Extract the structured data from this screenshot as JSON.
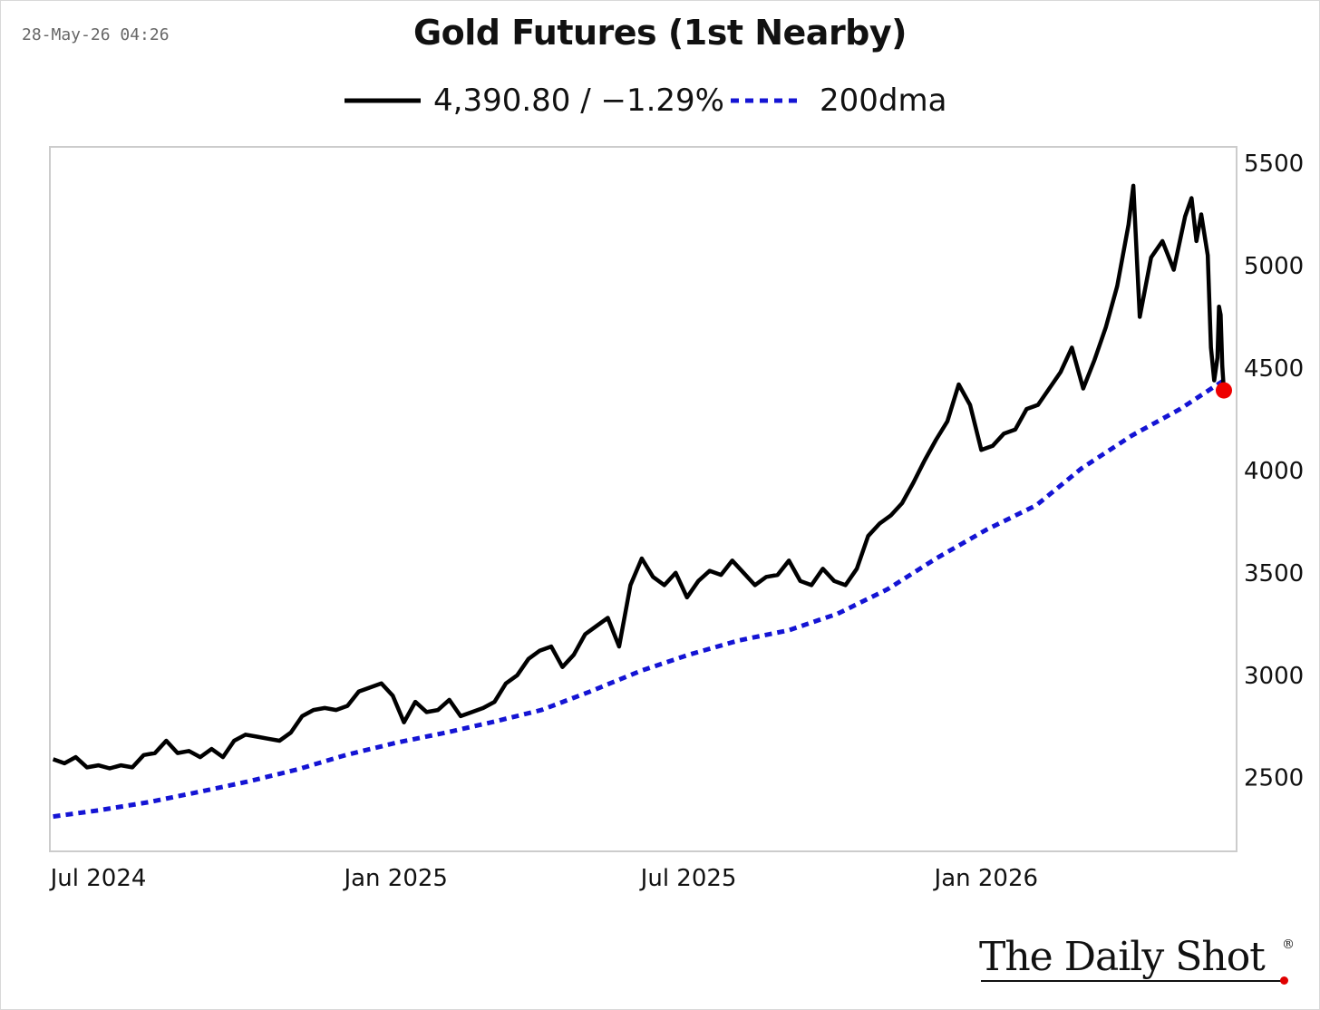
{
  "timestamp": "28-May-26 04:26",
  "brand": "The Daily Shot",
  "chart_data": {
    "type": "line",
    "title": "Gold Futures (1st Nearby)",
    "xlabel": "",
    "ylabel": "",
    "x_range": [
      "2024-06-01",
      "2026-05-28"
    ],
    "ylim": [
      2140,
      5580
    ],
    "x_ticks": [
      {
        "label": "Jul 2024",
        "date": "2024-07-01"
      },
      {
        "label": "Jan 2025",
        "date": "2025-01-01"
      },
      {
        "label": "Jul 2025",
        "date": "2025-07-01"
      },
      {
        "label": "Jan 2026",
        "date": "2026-01-01"
      }
    ],
    "y_ticks": [
      2500,
      3000,
      3500,
      4000,
      4500,
      5000,
      5500
    ],
    "y_axis_position": "right",
    "grid": false,
    "legend_position": "top-center",
    "series": [
      {
        "name": "4,390.80 / −1.29%",
        "color": "#000000",
        "style": "solid",
        "points": [
          [
            "2024-06-03",
            2590
          ],
          [
            "2024-06-10",
            2570
          ],
          [
            "2024-06-17",
            2600
          ],
          [
            "2024-06-24",
            2550
          ],
          [
            "2024-07-01",
            2560
          ],
          [
            "2024-07-08",
            2545
          ],
          [
            "2024-07-15",
            2560
          ],
          [
            "2024-07-22",
            2550
          ],
          [
            "2024-07-29",
            2610
          ],
          [
            "2024-08-05",
            2620
          ],
          [
            "2024-08-12",
            2680
          ],
          [
            "2024-08-19",
            2620
          ],
          [
            "2024-08-26",
            2630
          ],
          [
            "2024-09-02",
            2600
          ],
          [
            "2024-09-09",
            2640
          ],
          [
            "2024-09-16",
            2600
          ],
          [
            "2024-09-23",
            2680
          ],
          [
            "2024-09-30",
            2710
          ],
          [
            "2024-10-07",
            2700
          ],
          [
            "2024-10-14",
            2690
          ],
          [
            "2024-10-21",
            2680
          ],
          [
            "2024-10-28",
            2720
          ],
          [
            "2024-11-04",
            2800
          ],
          [
            "2024-11-11",
            2830
          ],
          [
            "2024-11-18",
            2840
          ],
          [
            "2024-11-25",
            2830
          ],
          [
            "2024-12-02",
            2850
          ],
          [
            "2024-12-09",
            2920
          ],
          [
            "2024-12-16",
            2940
          ],
          [
            "2024-12-23",
            2960
          ],
          [
            "2024-12-30",
            2900
          ],
          [
            "2025-01-06",
            2770
          ],
          [
            "2025-01-13",
            2870
          ],
          [
            "2025-01-20",
            2820
          ],
          [
            "2025-01-27",
            2830
          ],
          [
            "2025-02-03",
            2880
          ],
          [
            "2025-02-10",
            2800
          ],
          [
            "2025-02-17",
            2820
          ],
          [
            "2025-02-24",
            2840
          ],
          [
            "2025-03-03",
            2870
          ],
          [
            "2025-03-10",
            2960
          ],
          [
            "2025-03-17",
            3000
          ],
          [
            "2025-03-24",
            3080
          ],
          [
            "2025-03-31",
            3120
          ],
          [
            "2025-04-07",
            3140
          ],
          [
            "2025-04-14",
            3040
          ],
          [
            "2025-04-21",
            3100
          ],
          [
            "2025-04-28",
            3200
          ],
          [
            "2025-05-05",
            3240
          ],
          [
            "2025-05-12",
            3280
          ],
          [
            "2025-05-19",
            3140
          ],
          [
            "2025-05-26",
            3440
          ],
          [
            "2025-06-02",
            3570
          ],
          [
            "2025-06-09",
            3480
          ],
          [
            "2025-06-16",
            3440
          ],
          [
            "2025-06-23",
            3500
          ],
          [
            "2025-06-30",
            3380
          ],
          [
            "2025-07-07",
            3460
          ],
          [
            "2025-07-14",
            3510
          ],
          [
            "2025-07-21",
            3490
          ],
          [
            "2025-07-28",
            3560
          ],
          [
            "2025-08-04",
            3500
          ],
          [
            "2025-08-11",
            3440
          ],
          [
            "2025-08-18",
            3480
          ],
          [
            "2025-08-25",
            3490
          ],
          [
            "2025-09-01",
            3560
          ],
          [
            "2025-09-08",
            3460
          ],
          [
            "2025-09-15",
            3440
          ],
          [
            "2025-09-22",
            3520
          ],
          [
            "2025-09-29",
            3460
          ],
          [
            "2025-10-06",
            3440
          ],
          [
            "2025-10-13",
            3520
          ],
          [
            "2025-10-20",
            3680
          ],
          [
            "2025-10-27",
            3740
          ],
          [
            "2025-11-03",
            3780
          ],
          [
            "2025-11-10",
            3840
          ],
          [
            "2025-11-17",
            3940
          ],
          [
            "2025-11-24",
            4050
          ],
          [
            "2025-12-01",
            4150
          ],
          [
            "2025-12-08",
            4240
          ],
          [
            "2025-12-15",
            4420
          ],
          [
            "2025-12-22",
            4320
          ],
          [
            "2025-12-29",
            4100
          ],
          [
            "2026-01-05",
            4120
          ],
          [
            "2026-01-12",
            4180
          ],
          [
            "2026-01-19",
            4200
          ],
          [
            "2026-01-26",
            4300
          ],
          [
            "2026-02-02",
            4320
          ],
          [
            "2026-02-09",
            4400
          ],
          [
            "2026-02-16",
            4480
          ],
          [
            "2026-02-23",
            4600
          ],
          [
            "2026-03-02",
            4400
          ],
          [
            "2026-03-09",
            4540
          ],
          [
            "2026-03-16",
            4700
          ],
          [
            "2026-03-23",
            4900
          ],
          [
            "2026-03-30",
            5200
          ],
          [
            "2026-04-02",
            5390
          ],
          [
            "2026-04-06",
            4750
          ],
          [
            "2026-04-13",
            5040
          ],
          [
            "2026-04-20",
            5120
          ],
          [
            "2026-04-27",
            4980
          ],
          [
            "2026-05-04",
            5240
          ],
          [
            "2026-05-08",
            5330
          ],
          [
            "2026-05-11",
            5120
          ],
          [
            "2026-05-14",
            5250
          ],
          [
            "2026-05-18",
            5050
          ],
          [
            "2026-05-20",
            4600
          ],
          [
            "2026-05-22",
            4440
          ],
          [
            "2026-05-24",
            4550
          ],
          [
            "2026-05-25",
            4800
          ],
          [
            "2026-05-26",
            4760
          ],
          [
            "2026-05-27",
            4510
          ],
          [
            "2026-05-28",
            4390.8
          ]
        ]
      },
      {
        "name": "200dma",
        "color": "#1414d4",
        "style": "dotted",
        "points": [
          [
            "2024-06-03",
            2310
          ],
          [
            "2024-07-01",
            2340
          ],
          [
            "2024-08-01",
            2380
          ],
          [
            "2024-09-01",
            2430
          ],
          [
            "2024-10-01",
            2480
          ],
          [
            "2024-11-01",
            2540
          ],
          [
            "2024-12-01",
            2610
          ],
          [
            "2025-01-01",
            2670
          ],
          [
            "2025-02-01",
            2720
          ],
          [
            "2025-03-01",
            2770
          ],
          [
            "2025-04-01",
            2830
          ],
          [
            "2025-05-01",
            2920
          ],
          [
            "2025-06-01",
            3020
          ],
          [
            "2025-07-01",
            3100
          ],
          [
            "2025-08-01",
            3170
          ],
          [
            "2025-09-01",
            3220
          ],
          [
            "2025-10-01",
            3300
          ],
          [
            "2025-11-01",
            3420
          ],
          [
            "2025-12-01",
            3570
          ],
          [
            "2026-01-01",
            3710
          ],
          [
            "2026-02-01",
            3830
          ],
          [
            "2026-03-01",
            4010
          ],
          [
            "2026-04-01",
            4170
          ],
          [
            "2026-05-01",
            4300
          ],
          [
            "2026-05-28",
            4440
          ]
        ]
      }
    ],
    "last_point_marker": {
      "color": "#ee0000"
    }
  }
}
